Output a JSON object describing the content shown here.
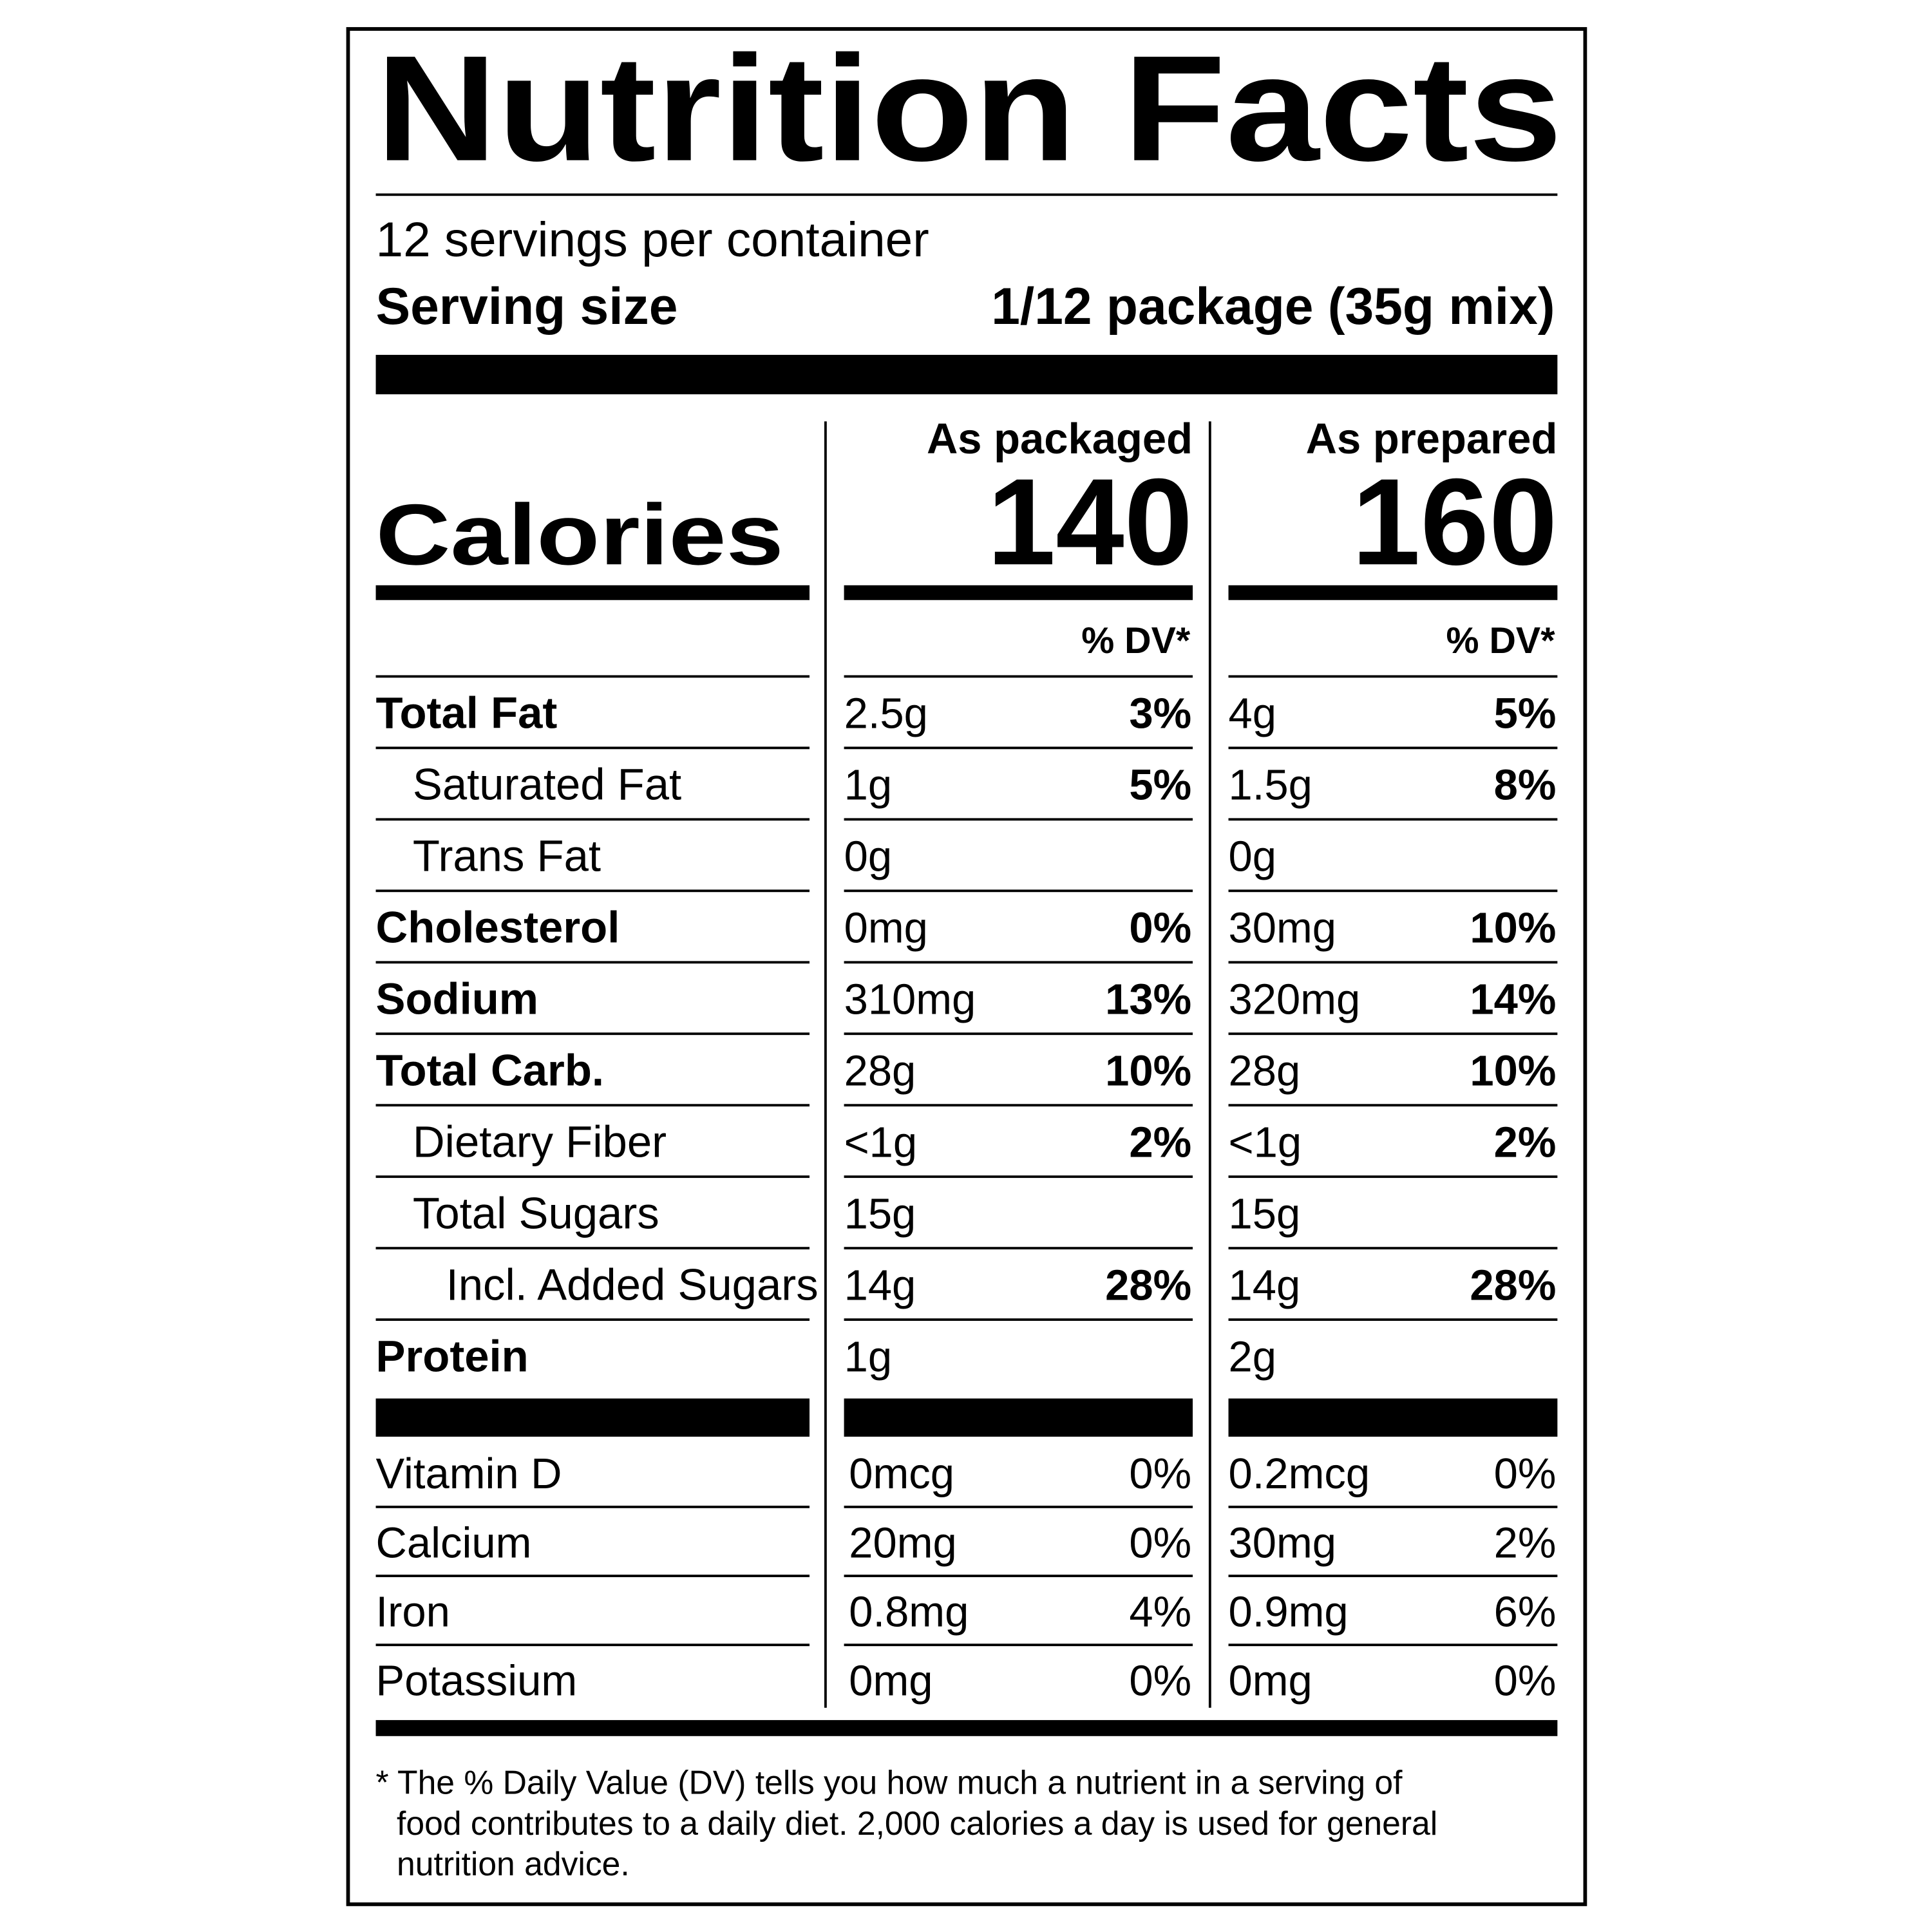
{
  "title": "Nutrition Facts",
  "servings": "12 servings per container",
  "serving_size": {
    "label": "Serving size",
    "value": "1/12 package (35g mix)"
  },
  "calories_label": "Calories",
  "columns": [
    {
      "header": "As packaged",
      "calories": "140",
      "dv_header": "% DV*"
    },
    {
      "header": "As prepared",
      "calories": "160",
      "dv_header": "% DV*"
    }
  ],
  "nutrients": [
    {
      "name": "Total Fat",
      "values": [
        {
          "amount": "2.5g",
          "dv": "3%"
        },
        {
          "amount": "4g",
          "dv": "5%"
        }
      ],
      "sub": [
        {
          "name": "Saturated Fat",
          "values": [
            {
              "amount": "1g",
              "dv": "5%"
            },
            {
              "amount": "1.5g",
              "dv": "8%"
            }
          ]
        },
        {
          "name": "Trans Fat",
          "values": [
            {
              "amount": "0g"
            },
            {
              "amount": "0g"
            }
          ]
        }
      ]
    },
    {
      "name": "Cholesterol",
      "values": [
        {
          "amount": "0mg",
          "dv": "0%"
        },
        {
          "amount": "30mg",
          "dv": "10%"
        }
      ]
    },
    {
      "name": "Sodium",
      "values": [
        {
          "amount": "310mg",
          "dv": "13%"
        },
        {
          "amount": "320mg",
          "dv": "14%"
        }
      ]
    },
    {
      "name": "Total Carb.",
      "values": [
        {
          "amount": "28g",
          "dv": "10%"
        },
        {
          "amount": "28g",
          "dv": "10%"
        }
      ],
      "sub": [
        {
          "name": "Dietary Fiber",
          "values": [
            {
              "amount": "<1g",
              "dv": "2%"
            },
            {
              "amount": "<1g",
              "dv": "2%"
            }
          ]
        },
        {
          "name": "Total Sugars",
          "values": [
            {
              "amount": "15g"
            },
            {
              "amount": "15g"
            }
          ],
          "sub": [
            {
              "name": "Incl. Added Sugars",
              "values": [
                {
                  "amount": "14g",
                  "dv": "28%"
                },
                {
                  "amount": "14g",
                  "dv": "28%"
                }
              ]
            }
          ]
        }
      ]
    },
    {
      "name": "Protein",
      "values": [
        {
          "amount": "1g"
        },
        {
          "amount": "2g"
        }
      ]
    }
  ],
  "vitamins": [
    {
      "name": "Vitamin D",
      "values": [
        {
          "amount": "0mcg",
          "dv": "0%"
        },
        {
          "amount": "0.2mcg",
          "dv": "0%"
        }
      ]
    },
    {
      "name": "Calcium",
      "values": [
        {
          "amount": "20mg",
          "dv": "0%"
        },
        {
          "amount": "30mg",
          "dv": "2%"
        }
      ]
    },
    {
      "name": "Iron",
      "values": [
        {
          "amount": "0.8mg",
          "dv": "4%"
        },
        {
          "amount": "0.9mg",
          "dv": "6%"
        }
      ]
    },
    {
      "name": "Potassium",
      "values": [
        {
          "amount": "0mg",
          "dv": "0%"
        },
        {
          "amount": "0mg",
          "dv": "0%"
        }
      ]
    }
  ],
  "footnote": [
    "* The % Daily Value (DV) tells you how much a nutrient in a serving of",
    "food contributes to a daily diet. 2,000 calories a day is used for general",
    "nutrition advice."
  ]
}
